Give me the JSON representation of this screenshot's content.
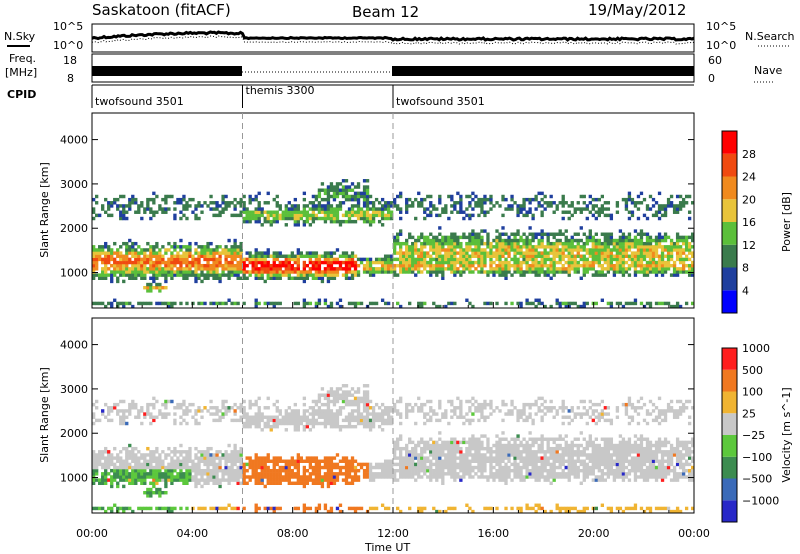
{
  "header": {
    "station": "Saskatoon (fitACF)",
    "beam": "Beam 12",
    "date": "19/May/2012"
  },
  "top_panels": {
    "nsky_label": "N.Sky",
    "nsearch_label": "N.Search",
    "freq_label_1": "Freq.",
    "freq_label_2": "[MHz]",
    "nave_label": "Nave",
    "cpid_label": "CPID",
    "noise_ticks": [
      "10^5",
      "10^0"
    ],
    "freq_ticks": [
      "18",
      "8"
    ],
    "nave_ticks": [
      "60",
      "0"
    ]
  },
  "cpid_segments": [
    {
      "label": "twofsound 3501",
      "start_hour": 0,
      "end_hour": 6
    },
    {
      "label": "themis 3300",
      "start_hour": 6,
      "end_hour": 12
    },
    {
      "label": "twofsound 3501",
      "start_hour": 12,
      "end_hour": 24
    }
  ],
  "chart_data": [
    {
      "type": "heatmap",
      "panel": "power",
      "ylabel": "Slant Range [km]",
      "xlabel": "Time UT",
      "xlim": [
        0,
        24
      ],
      "ylim": [
        200,
        4600
      ],
      "x_ticks": [
        "00:00",
        "04:00",
        "08:00",
        "12:00",
        "16:00",
        "20:00",
        "00:00"
      ],
      "y_ticks": [
        1000,
        2000,
        3000,
        4000
      ],
      "colorbar": {
        "label": "Power [dB]",
        "ticks": [
          4,
          8,
          12,
          16,
          20,
          24,
          28
        ],
        "colors": [
          "#0000ff",
          "#1f3f9e",
          "#3a7b4c",
          "#5bbf3a",
          "#e8c43a",
          "#f08a1e",
          "#f04a10",
          "#ff0000"
        ]
      }
    },
    {
      "type": "heatmap",
      "panel": "velocity",
      "ylabel": "Slant Range [km]",
      "xlabel": "Time UT",
      "xlim": [
        0,
        24
      ],
      "ylim": [
        200,
        4600
      ],
      "x_ticks": [
        "00:00",
        "04:00",
        "08:00",
        "12:00",
        "16:00",
        "20:00",
        "00:00"
      ],
      "y_ticks": [
        1000,
        2000,
        3000,
        4000
      ],
      "colorbar": {
        "label": "Velocity [m s^-1]",
        "ticks": [
          "1000",
          "500",
          "100",
          "25",
          "−25",
          "−100",
          "−500",
          "−1000"
        ],
        "colors": [
          "#2828c8",
          "#3a6ab8",
          "#3c8c50",
          "#5cc83c",
          "#c8c8c8",
          "#f0b432",
          "#f07820",
          "#ff1e1e"
        ]
      }
    }
  ]
}
